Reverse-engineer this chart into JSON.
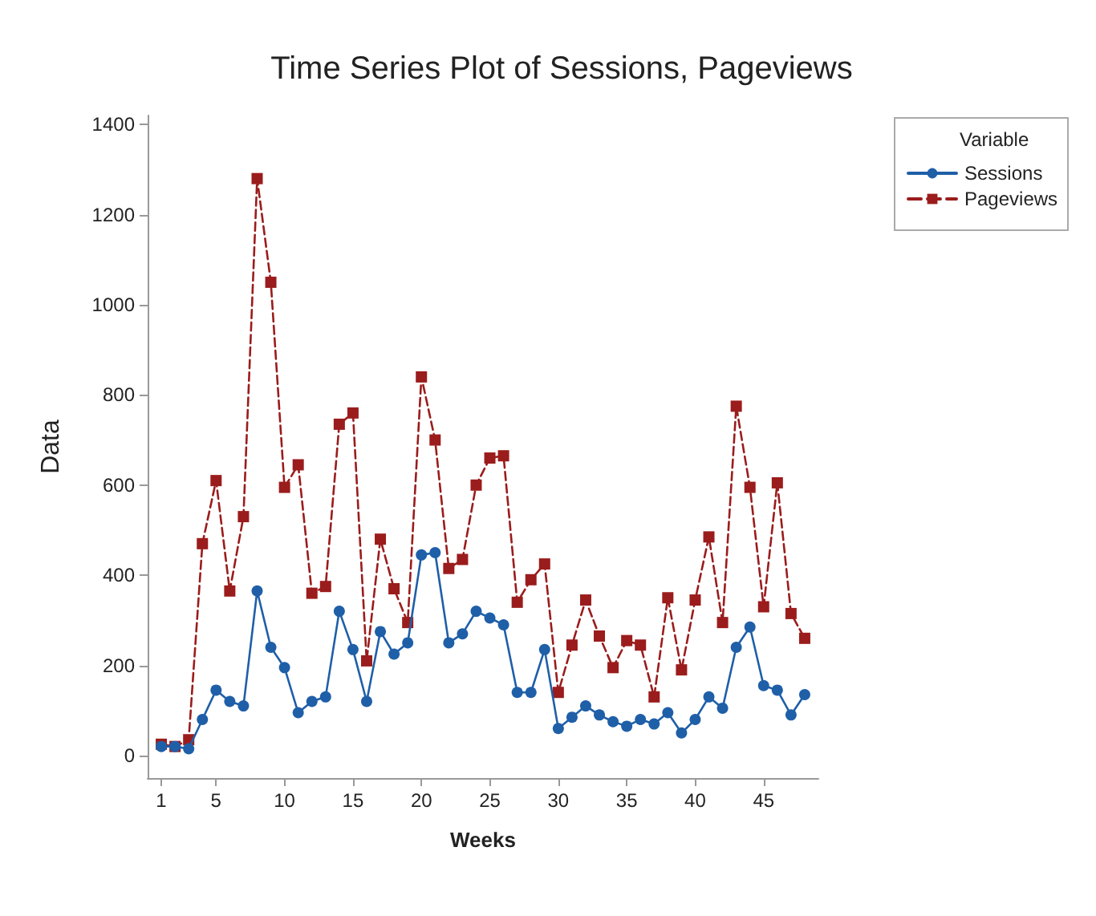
{
  "chart_data": {
    "type": "line",
    "title": "Time Series Plot of Sessions, Pageviews",
    "xlabel": "Weeks",
    "ylabel": "Data",
    "legend_title": "Variable",
    "legend": "right",
    "grid": false,
    "x": [
      1,
      2,
      3,
      4,
      5,
      6,
      7,
      8,
      9,
      10,
      11,
      12,
      13,
      14,
      15,
      16,
      17,
      18,
      19,
      20,
      21,
      22,
      23,
      24,
      25,
      26,
      27,
      28,
      29,
      30,
      31,
      32,
      33,
      34,
      35,
      36,
      37,
      38,
      39,
      40,
      41,
      42,
      43,
      44,
      45,
      46,
      47,
      48
    ],
    "xlim": [
      0,
      49
    ],
    "xticks": [
      1,
      5,
      10,
      15,
      20,
      25,
      30,
      35,
      40,
      45
    ],
    "ylim": [
      -50,
      1420
    ],
    "yticks": [
      0,
      200,
      400,
      600,
      800,
      1000,
      1200,
      1400
    ],
    "series": [
      {
        "name": "Sessions",
        "color": "#1f5fa8",
        "marker": "circle",
        "line_style": "solid",
        "values": [
          20,
          20,
          15,
          80,
          145,
          120,
          110,
          365,
          240,
          195,
          95,
          120,
          130,
          320,
          235,
          120,
          275,
          225,
          250,
          445,
          450,
          250,
          270,
          320,
          305,
          290,
          140,
          140,
          235,
          60,
          85,
          110,
          90,
          75,
          65,
          80,
          70,
          95,
          50,
          80,
          130,
          105,
          240,
          285,
          155,
          145,
          90,
          135
        ]
      },
      {
        "name": "Pageviews",
        "color": "#9b1c1c",
        "marker": "square",
        "line_style": "dashed",
        "values": [
          25,
          20,
          35,
          470,
          610,
          365,
          530,
          1280,
          1050,
          595,
          645,
          360,
          375,
          735,
          760,
          210,
          480,
          370,
          295,
          840,
          700,
          415,
          435,
          600,
          660,
          665,
          340,
          390,
          425,
          140,
          245,
          345,
          265,
          195,
          255,
          245,
          130,
          350,
          190,
          345,
          485,
          295,
          775,
          595,
          330,
          605,
          315,
          260
        ]
      }
    ]
  }
}
